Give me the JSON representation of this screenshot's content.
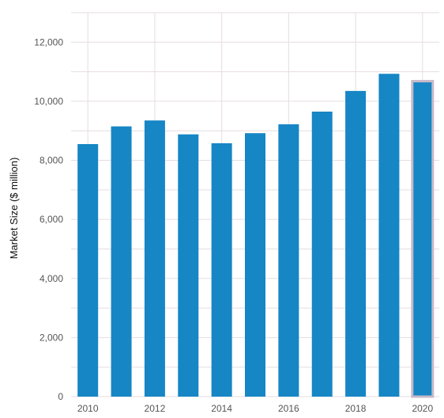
{
  "chart_data": {
    "type": "bar",
    "title": "",
    "xlabel": "",
    "ylabel": "Market Size ($ million)",
    "categories": [
      "2010",
      "2011",
      "2012",
      "2013",
      "2014",
      "2015",
      "2016",
      "2017",
      "2018",
      "2019",
      "2020"
    ],
    "x_tick_labels": [
      "2010",
      "2012",
      "2014",
      "2016",
      "2018",
      "2020"
    ],
    "values": [
      8550,
      9150,
      9350,
      8880,
      8580,
      8920,
      9220,
      9650,
      10350,
      10930,
      10680
    ],
    "highlighted_category": "2020",
    "ylim": [
      0,
      13000
    ],
    "y_ticks": [
      0,
      2000,
      4000,
      6000,
      8000,
      10000,
      12000
    ],
    "y_tick_labels": [
      "0",
      "2,000",
      "4,000",
      "6,000",
      "8,000",
      "10,000",
      "12,000"
    ],
    "grid": true,
    "colors": {
      "bar": "#1686c5",
      "highlight_outline": "#c7b9c9",
      "grid": "#e6dde0",
      "tick_text": "#555555"
    }
  }
}
